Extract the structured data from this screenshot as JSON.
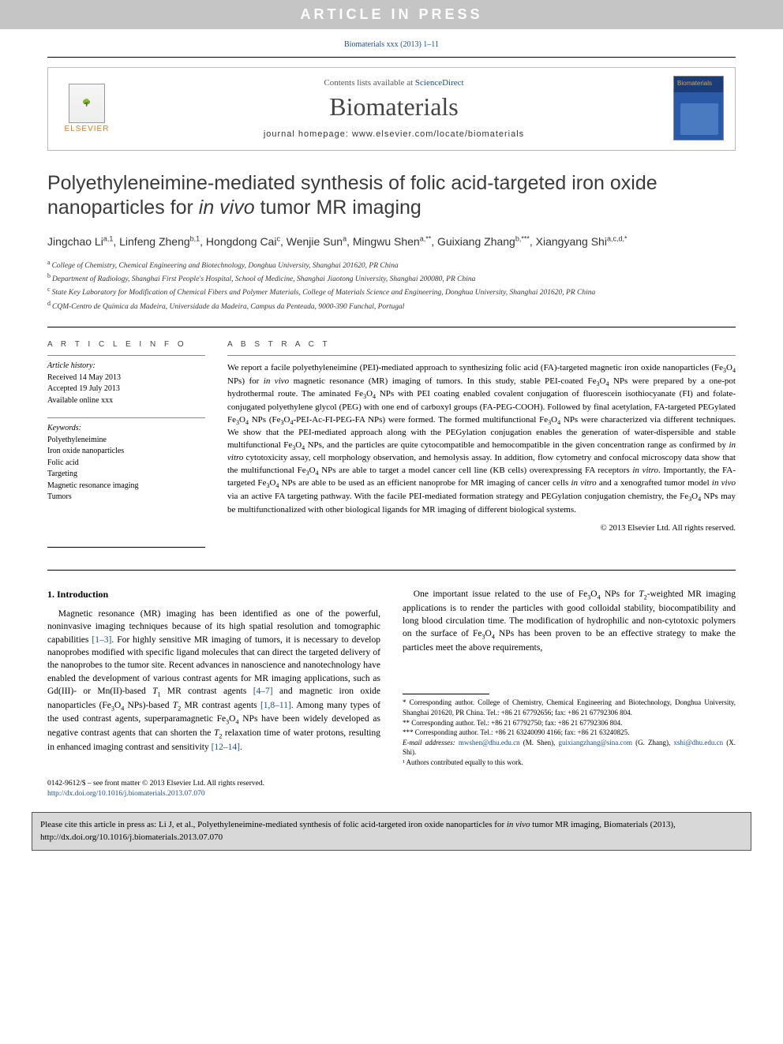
{
  "banner": "ARTICLE IN PRESS",
  "top_citation": "Biomaterials xxx (2013) 1–11",
  "masthead": {
    "contents_prefix": "Contents lists available at ",
    "contents_link": "ScienceDirect",
    "journal": "Biomaterials",
    "homepage_label": "journal homepage: ",
    "homepage_url": "www.elsevier.com/locate/biomaterials",
    "publisher": "ELSEVIER",
    "cover_label": "Biomaterials"
  },
  "title_pre": "Polyethyleneimine-mediated synthesis of folic acid-targeted iron oxide nanoparticles for ",
  "title_em": "in vivo",
  "title_post": " tumor MR imaging",
  "authors_html": "Jingchao Li<sup>a,1</sup>, Linfeng Zheng<sup>b,1</sup>, Hongdong Cai<sup>c</sup>, Wenjie Sun<sup>a</sup>, Mingwu Shen<sup>a,**</sup>, Guixiang Zhang<sup>b,***</sup>, Xiangyang Shi<sup>a,c,d,*</sup>",
  "affiliations": [
    {
      "key": "a",
      "text": "College of Chemistry, Chemical Engineering and Biotechnology, Donghua University, Shanghai 201620, PR China"
    },
    {
      "key": "b",
      "text": "Department of Radiology, Shanghai First People's Hospital, School of Medicine, Shanghai Jiaotong University, Shanghai 200080, PR China"
    },
    {
      "key": "c",
      "text": "State Key Laboratory for Modification of Chemical Fibers and Polymer Materials, College of Materials Science and Engineering, Donghua University, Shanghai 201620, PR China"
    },
    {
      "key": "d",
      "text": "CQM-Centro de Química da Madeira, Universidade da Madeira, Campus da Penteada, 9000-390 Funchal, Portugal"
    }
  ],
  "article_info": {
    "heading": "A R T I C L E   I N F O",
    "history_label": "Article history:",
    "received": "Received 14 May 2013",
    "accepted": "Accepted 19 July 2013",
    "online": "Available online xxx",
    "keywords_label": "Keywords:",
    "keywords": [
      "Polyethyleneimine",
      "Iron oxide nanoparticles",
      "Folic acid",
      "Targeting",
      "Magnetic resonance imaging",
      "Tumors"
    ]
  },
  "abstract": {
    "heading": "A B S T R A C T",
    "text_segments": [
      {
        "t": "We report a facile polyethyleneimine (PEI)-mediated approach to synthesizing folic acid (FA)-targeted magnetic iron oxide nanoparticles (Fe"
      },
      {
        "t": "3",
        "cls": "sub"
      },
      {
        "t": "O"
      },
      {
        "t": "4",
        "cls": "sub"
      },
      {
        "t": " NPs) for "
      },
      {
        "t": "in vivo",
        "cls": "ital"
      },
      {
        "t": " magnetic resonance (MR) imaging of tumors. In this study, stable PEI-coated Fe"
      },
      {
        "t": "3",
        "cls": "sub"
      },
      {
        "t": "O"
      },
      {
        "t": "4",
        "cls": "sub"
      },
      {
        "t": " NPs were prepared by a one-pot hydrothermal route. The aminated Fe"
      },
      {
        "t": "3",
        "cls": "sub"
      },
      {
        "t": "O"
      },
      {
        "t": "4",
        "cls": "sub"
      },
      {
        "t": " NPs with PEI coating enabled covalent conjugation of fluorescein isothiocyanate (FI) and folate-conjugated polyethylene glycol (PEG) with one end of carboxyl groups (FA-PEG-COOH). Followed by final acetylation, FA-targeted PEGylated Fe"
      },
      {
        "t": "3",
        "cls": "sub"
      },
      {
        "t": "O"
      },
      {
        "t": "4",
        "cls": "sub"
      },
      {
        "t": " NPs (Fe"
      },
      {
        "t": "3",
        "cls": "sub"
      },
      {
        "t": "O"
      },
      {
        "t": "4",
        "cls": "sub"
      },
      {
        "t": "-PEI-Ac-FI-PEG-FA NPs) were formed. The formed multifunctional Fe"
      },
      {
        "t": "3",
        "cls": "sub"
      },
      {
        "t": "O"
      },
      {
        "t": "4",
        "cls": "sub"
      },
      {
        "t": " NPs were characterized via different techniques. We show that the PEI-mediated approach along with the PEGylation conjugation enables the generation of water-dispersible and stable multifunctional Fe"
      },
      {
        "t": "3",
        "cls": "sub"
      },
      {
        "t": "O"
      },
      {
        "t": "4",
        "cls": "sub"
      },
      {
        "t": " NPs, and the particles are quite cytocompatible and hemocompatible in the given concentration range as confirmed by "
      },
      {
        "t": "in vitro",
        "cls": "ital"
      },
      {
        "t": " cytotoxicity assay, cell morphology observation, and hemolysis assay. In addition, flow cytometry and confocal microscopy data show that the multifunctional Fe"
      },
      {
        "t": "3",
        "cls": "sub"
      },
      {
        "t": "O"
      },
      {
        "t": "4",
        "cls": "sub"
      },
      {
        "t": " NPs are able to target a model cancer cell line (KB cells) overexpressing FA receptors "
      },
      {
        "t": "in vitro",
        "cls": "ital"
      },
      {
        "t": ". Importantly, the FA-targeted Fe"
      },
      {
        "t": "3",
        "cls": "sub"
      },
      {
        "t": "O"
      },
      {
        "t": "4",
        "cls": "sub"
      },
      {
        "t": " NPs are able to be used as an efficient nanoprobe for MR imaging of cancer cells "
      },
      {
        "t": "in vitro",
        "cls": "ital"
      },
      {
        "t": " and a xenografted tumor model "
      },
      {
        "t": "in vivo",
        "cls": "ital"
      },
      {
        "t": " via an active FA targeting pathway. With the facile PEI-mediated formation strategy and PEGylation conjugation chemistry, the Fe"
      },
      {
        "t": "3",
        "cls": "sub"
      },
      {
        "t": "O"
      },
      {
        "t": "4",
        "cls": "sub"
      },
      {
        "t": " NPs may be multifunctionalized with other biological ligands for MR imaging of different biological systems."
      }
    ],
    "copyright": "© 2013 Elsevier Ltd. All rights reserved."
  },
  "section1": {
    "heading": "1. Introduction",
    "para1_segments": [
      {
        "t": "Magnetic resonance (MR) imaging has been identified as one of the powerful, noninvasive imaging techniques because of its high spatial resolution and tomographic capabilities "
      },
      {
        "t": "[1–3]",
        "link": true
      },
      {
        "t": ". For highly sensitive MR imaging of tumors, it is necessary to develop nanoprobes modified with specific ligand molecules that can direct the targeted delivery of the nanoprobes to the tumor site. Recent advances in nanoscience and nanotechnology have enabled the development of various contrast agents for MR imaging applications, such as Gd(III)- or Mn(II)-based "
      },
      {
        "t": "T",
        "cls": "ital"
      },
      {
        "t": "1",
        "cls": "sub"
      },
      {
        "t": " MR contrast agents "
      },
      {
        "t": "[4–7]",
        "link": true
      },
      {
        "t": " and magnetic iron oxide nanoparticles (Fe"
      },
      {
        "t": "3",
        "cls": "sub"
      },
      {
        "t": "O"
      },
      {
        "t": "4",
        "cls": "sub"
      },
      {
        "t": " NPs)-based "
      },
      {
        "t": "T",
        "cls": "ital"
      },
      {
        "t": "2",
        "cls": "sub"
      },
      {
        "t": " MR contrast agents "
      },
      {
        "t": "[1,8–11]",
        "link": true
      },
      {
        "t": ". Among many types of the used contrast agents, superparamagnetic Fe"
      },
      {
        "t": "3",
        "cls": "sub"
      },
      {
        "t": "O"
      },
      {
        "t": "4",
        "cls": "sub"
      },
      {
        "t": " NPs have been widely developed as negative contrast agents that can shorten the "
      },
      {
        "t": "T",
        "cls": "ital"
      },
      {
        "t": "2",
        "cls": "sub"
      },
      {
        "t": " relaxation time of water protons, resulting in enhanced imaging contrast and sensitivity "
      },
      {
        "t": "[12–14]",
        "link": true
      },
      {
        "t": "."
      }
    ],
    "para2_segments": [
      {
        "t": "One important issue related to the use of Fe"
      },
      {
        "t": "3",
        "cls": "sub"
      },
      {
        "t": "O"
      },
      {
        "t": "4",
        "cls": "sub"
      },
      {
        "t": " NPs for "
      },
      {
        "t": "T",
        "cls": "ital"
      },
      {
        "t": "2",
        "cls": "sub"
      },
      {
        "t": "-weighted MR imaging applications is to render the particles with good colloidal stability, biocompatibility and long blood circulation time. The modification of hydrophilic and non-cytotoxic polymers on the surface of Fe"
      },
      {
        "t": "3",
        "cls": "sub"
      },
      {
        "t": "O"
      },
      {
        "t": "4",
        "cls": "sub"
      },
      {
        "t": " NPs has been proven to be an effective strategy to make the particles meet the above requirements,"
      }
    ]
  },
  "footnotes": {
    "star": "* Corresponding author. College of Chemistry, Chemical Engineering and Biotechnology, Donghua University, Shanghai 201620, PR China. Tel.: +86 21 67792656; fax: +86 21 67792306 804.",
    "star2": "** Corresponding author. Tel.: +86 21 67792750; fax: +86 21 67792306 804.",
    "star3": "*** Corresponding author. Tel.: +86 21 63240090 4166; fax: +86 21 63240825.",
    "emails_label": "E-mail addresses: ",
    "email1": "mwshen@dhu.edu.cn",
    "email1_who": " (M. Shen), ",
    "email2": "guixiangzhang@sina.com",
    "email2_who": " (G. Zhang), ",
    "email3": "xshi@dhu.edu.cn",
    "email3_who": " (X. Shi).",
    "note1": "¹ Authors contributed equally to this work."
  },
  "footer": {
    "issn_line": "0142-9612/$ – see front matter © 2013 Elsevier Ltd. All rights reserved.",
    "doi": "http://dx.doi.org/10.1016/j.biomaterials.2013.07.070"
  },
  "citebox_segments": [
    {
      "t": "Please cite this article in press as: Li J, et al., Polyethyleneimine-mediated synthesis of folic acid-targeted iron oxide nanoparticles for "
    },
    {
      "t": "in vivo",
      "cls": "ital"
    },
    {
      "t": " tumor MR imaging, Biomaterials (2013), http://dx.doi.org/10.1016/j.biomaterials.2013.07.070"
    }
  ],
  "colors": {
    "banner_bg": "#c5c5c5",
    "link": "#1a4d8f",
    "elsevier_orange": "#e67817",
    "citebox_bg": "#d8d8d8"
  }
}
